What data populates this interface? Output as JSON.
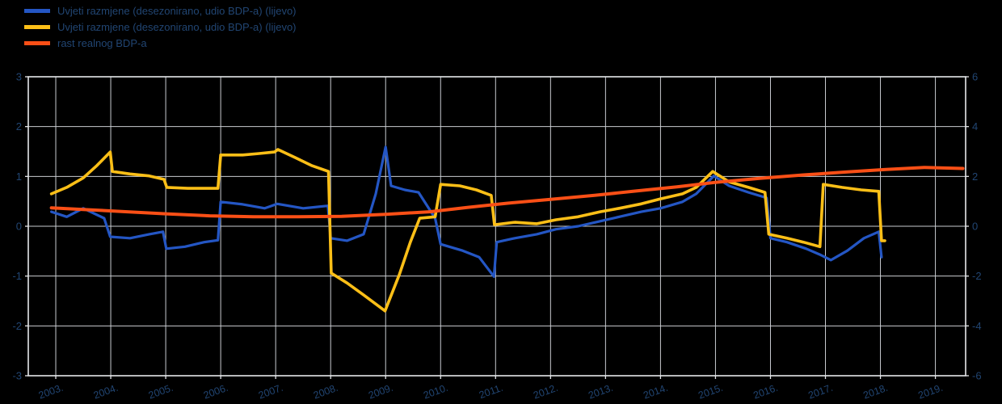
{
  "chart_data": {
    "type": "line",
    "title": "",
    "legend_position": "top-left",
    "grid": true,
    "colors": {
      "background": "#000000",
      "grid": "#c9ccd1",
      "border": "#e6e8eb",
      "text": "#214572"
    },
    "x_axis": {
      "min": 2002.5,
      "max": 2019.55,
      "tick_values": [
        2003,
        2004,
        2005,
        2006,
        2007,
        2008,
        2009,
        2010,
        2011,
        2012,
        2013,
        2014,
        2015,
        2016,
        2017,
        2018,
        2019
      ],
      "tick_labels": [
        "2003.",
        "2004.",
        "2005.",
        "2006.",
        "2007.",
        "2008.",
        "2009.",
        "2010.",
        "2011.",
        "2012.",
        "2013.",
        "2014.",
        "2015.",
        "2016.",
        "2017.",
        "2018.",
        "2019."
      ]
    },
    "y_axis_left": {
      "min": -3,
      "max": 3,
      "ticks": [
        3,
        2,
        1,
        0,
        -1,
        -2,
        -3
      ]
    },
    "y_axis_right": {
      "min": -6,
      "max": 6,
      "ticks": [
        6,
        4,
        2,
        0,
        -2,
        -4,
        -6
      ]
    },
    "series": [
      {
        "name": "Uvjeti razmjene (desezonirano, udio BDP-a) (lijevo)",
        "color": "#2456c4",
        "width": 3.2,
        "axis": "left",
        "points": [
          [
            2002.92,
            0.29
          ],
          [
            2003.2,
            0.19
          ],
          [
            2003.5,
            0.36
          ],
          [
            2003.88,
            0.16
          ],
          [
            2003.99,
            -0.21
          ],
          [
            2004.35,
            -0.24
          ],
          [
            2004.7,
            -0.16
          ],
          [
            2004.95,
            -0.11
          ],
          [
            2005.01,
            -0.45
          ],
          [
            2005.35,
            -0.41
          ],
          [
            2005.7,
            -0.32
          ],
          [
            2005.95,
            -0.28
          ],
          [
            2006.0,
            0.49
          ],
          [
            2006.4,
            0.44
          ],
          [
            2006.8,
            0.36
          ],
          [
            2007.03,
            0.45
          ],
          [
            2007.5,
            0.36
          ],
          [
            2007.95,
            0.41
          ],
          [
            2008.0,
            -0.24
          ],
          [
            2008.3,
            -0.29
          ],
          [
            2008.6,
            -0.16
          ],
          [
            2008.82,
            0.65
          ],
          [
            2009.0,
            1.59
          ],
          [
            2009.1,
            0.81
          ],
          [
            2009.35,
            0.73
          ],
          [
            2009.6,
            0.68
          ],
          [
            2009.9,
            0.16
          ],
          [
            2010.0,
            -0.36
          ],
          [
            2010.4,
            -0.49
          ],
          [
            2010.7,
            -0.62
          ],
          [
            2010.97,
            -1.01
          ],
          [
            2011.02,
            -0.32
          ],
          [
            2011.35,
            -0.24
          ],
          [
            2011.75,
            -0.16
          ],
          [
            2012.1,
            -0.06
          ],
          [
            2012.5,
            0.0
          ],
          [
            2012.9,
            0.1
          ],
          [
            2013.25,
            0.19
          ],
          [
            2013.65,
            0.29
          ],
          [
            2014.0,
            0.36
          ],
          [
            2014.4,
            0.49
          ],
          [
            2014.65,
            0.65
          ],
          [
            2014.97,
            1.01
          ],
          [
            2015.25,
            0.81
          ],
          [
            2015.6,
            0.68
          ],
          [
            2015.93,
            0.57
          ],
          [
            2016.0,
            -0.24
          ],
          [
            2016.3,
            -0.32
          ],
          [
            2016.65,
            -0.45
          ],
          [
            2016.9,
            -0.57
          ],
          [
            2017.1,
            -0.68
          ],
          [
            2017.4,
            -0.49
          ],
          [
            2017.7,
            -0.24
          ],
          [
            2017.97,
            -0.11
          ],
          [
            2018.02,
            -0.62
          ]
        ]
      },
      {
        "name": "Uvjeti razmjene (desezonirano, udio BDP-a) (lijevo)",
        "color": "#fcbf17",
        "width": 3.6,
        "axis": "left",
        "points": [
          [
            2002.92,
            0.65
          ],
          [
            2003.2,
            0.78
          ],
          [
            2003.5,
            0.97
          ],
          [
            2003.75,
            1.22
          ],
          [
            2003.99,
            1.49
          ],
          [
            2004.03,
            1.1
          ],
          [
            2004.35,
            1.05
          ],
          [
            2004.7,
            1.01
          ],
          [
            2004.97,
            0.94
          ],
          [
            2005.02,
            0.78
          ],
          [
            2005.4,
            0.76
          ],
          [
            2005.95,
            0.76
          ],
          [
            2006.0,
            1.43
          ],
          [
            2006.4,
            1.43
          ],
          [
            2006.7,
            1.46
          ],
          [
            2006.98,
            1.49
          ],
          [
            2007.04,
            1.54
          ],
          [
            2007.35,
            1.38
          ],
          [
            2007.65,
            1.22
          ],
          [
            2007.96,
            1.1
          ],
          [
            2008.01,
            -0.94
          ],
          [
            2008.3,
            -1.14
          ],
          [
            2008.6,
            -1.38
          ],
          [
            2008.99,
            -1.7
          ],
          [
            2009.25,
            -0.97
          ],
          [
            2009.45,
            -0.32
          ],
          [
            2009.62,
            0.16
          ],
          [
            2009.9,
            0.19
          ],
          [
            2010.0,
            0.84
          ],
          [
            2010.35,
            0.81
          ],
          [
            2010.65,
            0.73
          ],
          [
            2010.92,
            0.62
          ],
          [
            2010.98,
            0.03
          ],
          [
            2011.35,
            0.08
          ],
          [
            2011.75,
            0.05
          ],
          [
            2012.1,
            0.13
          ],
          [
            2012.5,
            0.19
          ],
          [
            2012.9,
            0.29
          ],
          [
            2013.25,
            0.36
          ],
          [
            2013.65,
            0.45
          ],
          [
            2014.0,
            0.55
          ],
          [
            2014.4,
            0.65
          ],
          [
            2014.65,
            0.78
          ],
          [
            2014.95,
            1.1
          ],
          [
            2015.25,
            0.89
          ],
          [
            2015.6,
            0.78
          ],
          [
            2015.9,
            0.68
          ],
          [
            2015.97,
            -0.16
          ],
          [
            2016.3,
            -0.24
          ],
          [
            2016.6,
            -0.32
          ],
          [
            2016.9,
            -0.41
          ],
          [
            2016.96,
            0.84
          ],
          [
            2017.3,
            0.78
          ],
          [
            2017.65,
            0.73
          ],
          [
            2017.97,
            0.7
          ],
          [
            2018.02,
            -0.29
          ],
          [
            2018.08,
            -0.29
          ]
        ]
      },
      {
        "name": "rast realnog BDP-a",
        "color": "#fa4f16",
        "width": 4,
        "axis": "left",
        "points": [
          [
            2002.92,
            0.37
          ],
          [
            2003.6,
            0.33
          ],
          [
            2004.3,
            0.29
          ],
          [
            2005.0,
            0.25
          ],
          [
            2005.8,
            0.21
          ],
          [
            2006.6,
            0.19
          ],
          [
            2007.4,
            0.19
          ],
          [
            2008.2,
            0.2
          ],
          [
            2009.0,
            0.24
          ],
          [
            2009.8,
            0.29
          ],
          [
            2010.5,
            0.38
          ],
          [
            2011.2,
            0.46
          ],
          [
            2012.0,
            0.54
          ],
          [
            2012.8,
            0.62
          ],
          [
            2013.5,
            0.7
          ],
          [
            2014.3,
            0.79
          ],
          [
            2015.0,
            0.88
          ],
          [
            2015.8,
            0.96
          ],
          [
            2016.6,
            1.03
          ],
          [
            2017.4,
            1.09
          ],
          [
            2018.1,
            1.14
          ],
          [
            2018.8,
            1.18
          ],
          [
            2019.5,
            1.16
          ]
        ]
      }
    ]
  }
}
